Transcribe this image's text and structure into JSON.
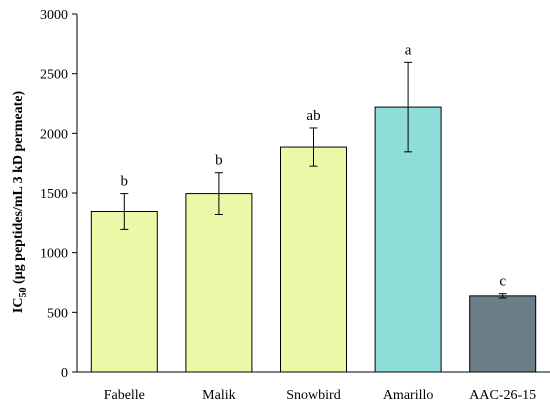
{
  "chart_data": {
    "type": "bar",
    "categories": [
      "Fabelle",
      "Malik",
      "Snowbird",
      "Amarillo",
      "AAC-26-15"
    ],
    "values": [
      1345,
      1495,
      1885,
      2220,
      638
    ],
    "errors": [
      150,
      175,
      160,
      375,
      18
    ],
    "significance_labels": [
      "b",
      "b",
      "ab",
      "a",
      "c"
    ],
    "colors": [
      "#ecf8a7",
      "#ecf8a7",
      "#ecf8a7",
      "#8fddd8",
      "#6c7f88"
    ],
    "ylabel": {
      "prefix": "IC",
      "subscript": "50",
      "suffix": " (µg peptides/mL 3 kD permeate)"
    },
    "yticks": [
      "0",
      "500",
      "1000",
      "1500",
      "2000",
      "2500",
      "3000"
    ],
    "ylim": [
      0,
      3000
    ],
    "xlabel": "",
    "grid": false
  }
}
